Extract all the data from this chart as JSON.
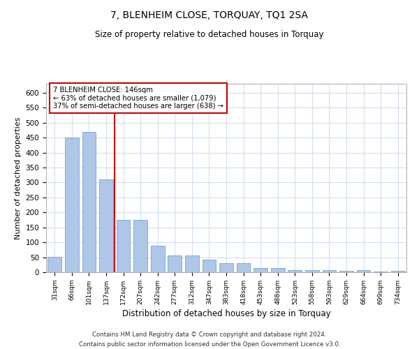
{
  "title1": "7, BLENHEIM CLOSE, TORQUAY, TQ1 2SA",
  "title2": "Size of property relative to detached houses in Torquay",
  "xlabel": "Distribution of detached houses by size in Torquay",
  "ylabel": "Number of detached properties",
  "footnote1": "Contains HM Land Registry data © Crown copyright and database right 2024.",
  "footnote2": "Contains public sector information licensed under the Open Government Licence v3.0.",
  "categories": [
    "31sqm",
    "66sqm",
    "101sqm",
    "137sqm",
    "172sqm",
    "207sqm",
    "242sqm",
    "277sqm",
    "312sqm",
    "347sqm",
    "383sqm",
    "418sqm",
    "453sqm",
    "488sqm",
    "523sqm",
    "558sqm",
    "593sqm",
    "629sqm",
    "664sqm",
    "699sqm",
    "734sqm"
  ],
  "values": [
    52,
    450,
    470,
    310,
    175,
    175,
    88,
    57,
    57,
    42,
    30,
    30,
    15,
    13,
    8,
    7,
    7,
    5,
    7,
    3,
    4
  ],
  "bar_color": "#aec6e8",
  "bar_edge_color": "#5b9bd5",
  "grid_color": "#d0dff0",
  "property_line_idx": 3,
  "property_label": "7 BLENHEIM CLOSE: 146sqm",
  "annotation_line1": "← 63% of detached houses are smaller (1,079)",
  "annotation_line2": "37% of semi-detached houses are larger (638) →",
  "annotation_box_color": "#ffffff",
  "annotation_box_edge": "#cc0000",
  "vline_color": "#cc0000",
  "ylim": [
    0,
    630
  ],
  "yticks": [
    0,
    50,
    100,
    150,
    200,
    250,
    300,
    350,
    400,
    450,
    500,
    550,
    600
  ]
}
